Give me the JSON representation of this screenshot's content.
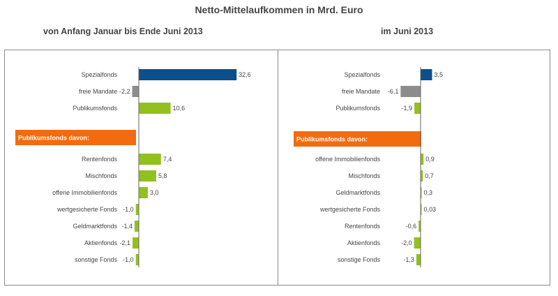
{
  "title": "Netto-Mittelaufkommen in Mrd. Euro",
  "subtitle_left": "von Anfang Januar bis Ende Juni 2013",
  "subtitle_right": "im Juni 2013",
  "colors": {
    "blue": "#0b4f8c",
    "gray": "#8c8c8c",
    "green": "#92c01f",
    "orange": "#f26b0f",
    "axis": "#666666"
  },
  "chart_data": [
    {
      "type": "bar",
      "orientation": "horizontal",
      "title": "von Anfang Januar bis Ende Juni 2013",
      "xlim": [
        -2.5,
        33
      ],
      "band_label": "Publikumsfonds davon:",
      "top_groups": [
        {
          "label": "Spezialfonds",
          "value": 32.6,
          "display": "32,6",
          "color": "blue"
        },
        {
          "label": "freie Mandate",
          "value": -2.2,
          "display": "-2,2",
          "color": "gray"
        },
        {
          "label": "Publikumsfonds",
          "value": 10.6,
          "display": "10,6",
          "color": "green"
        }
      ],
      "sub_groups": [
        {
          "label": "Rentenfonds",
          "value": 7.4,
          "display": "7,4",
          "color": "green"
        },
        {
          "label": "Mischfonds",
          "value": 5.8,
          "display": "5,8",
          "color": "green"
        },
        {
          "label": "offene Immobilienfonds",
          "value": 3.0,
          "display": "3,0",
          "color": "green"
        },
        {
          "label": "wertgesicherte Fonds",
          "value": -1.0,
          "display": "-1,0",
          "color": "green"
        },
        {
          "label": "Geldmarktfonds",
          "value": -1.4,
          "display": "-1,4",
          "color": "green"
        },
        {
          "label": "Aktienfonds",
          "value": -2.1,
          "display": "-2,1",
          "color": "green"
        },
        {
          "label": "sonstige Fonds",
          "value": -1.0,
          "display": "-1,0",
          "color": "green"
        }
      ]
    },
    {
      "type": "bar",
      "orientation": "horizontal",
      "title": "im Juni 2013",
      "xlim": [
        -6.5,
        6.5
      ],
      "band_label": "Publikumsfonds davon:",
      "top_groups": [
        {
          "label": "Spezialfonds",
          "value": 3.5,
          "display": "3,5",
          "color": "blue"
        },
        {
          "label": "freie Mandate",
          "value": -6.1,
          "display": "-6,1",
          "color": "gray"
        },
        {
          "label": "Publikumsfonds",
          "value": -1.9,
          "display": "-1,9",
          "color": "green"
        }
      ],
      "sub_groups": [
        {
          "label": "offene Immobilienfonds",
          "value": 0.9,
          "display": "0,9",
          "color": "green"
        },
        {
          "label": "Mischfonds",
          "value": 0.7,
          "display": "0,7",
          "color": "green"
        },
        {
          "label": "Geldmarktfonds",
          "value": 0.3,
          "display": "0,3",
          "color": "green"
        },
        {
          "label": "wertgesicherte Fonds",
          "value": 0.03,
          "display": "0,03",
          "color": "green"
        },
        {
          "label": "Rentenfonds",
          "value": -0.6,
          "display": "-0,6",
          "color": "green"
        },
        {
          "label": "Aktienfonds",
          "value": -2.0,
          "display": "-2,0",
          "color": "green"
        },
        {
          "label": "sonstige Fonds",
          "value": -1.3,
          "display": "-1,3",
          "color": "green"
        }
      ]
    }
  ]
}
